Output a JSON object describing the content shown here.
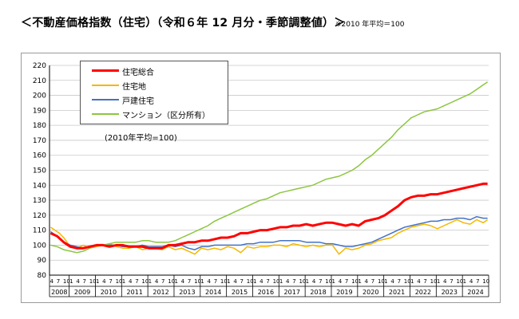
{
  "title": "＜不動産価格指数（住宅）（令和６年 12 月分・季節調整値）＞",
  "title_note": "※2010 年平均＝100",
  "legend_note": "(2010年平均=100)",
  "chart_data": {
    "type": "line",
    "title": "不動産価格指数（住宅）（令和６年12月分・季節調整値）",
    "xlabel": "",
    "ylabel": "",
    "ylim": [
      80,
      220
    ],
    "yticks": [
      80,
      90,
      100,
      110,
      120,
      130,
      140,
      150,
      160,
      170,
      180,
      190,
      200,
      210,
      220
    ],
    "grid": true,
    "legend_position": "top-left",
    "x_start": "2008-04",
    "x_end": "2024-12",
    "month_ticks": [
      "4",
      "7",
      "10",
      "1"
    ],
    "years": [
      "2008",
      "2009",
      "2010",
      "2011",
      "2012",
      "2013",
      "2014",
      "2015",
      "2016",
      "2017",
      "2018",
      "2019",
      "2020",
      "2021",
      "2022",
      "2023",
      "2024"
    ],
    "series": [
      {
        "name": "住宅総合",
        "color": "#ff0000",
        "width": 3,
        "points": [
          [
            0,
            108
          ],
          [
            3,
            106
          ],
          [
            6,
            102
          ],
          [
            9,
            99
          ],
          [
            12,
            98
          ],
          [
            15,
            98
          ],
          [
            18,
            99
          ],
          [
            21,
            100
          ],
          [
            24,
            100
          ],
          [
            27,
            99
          ],
          [
            30,
            100
          ],
          [
            33,
            100
          ],
          [
            36,
            99
          ],
          [
            39,
            99
          ],
          [
            42,
            99
          ],
          [
            45,
            98
          ],
          [
            48,
            98
          ],
          [
            51,
            98
          ],
          [
            54,
            100
          ],
          [
            57,
            100
          ],
          [
            60,
            101
          ],
          [
            63,
            102
          ],
          [
            66,
            102
          ],
          [
            69,
            103
          ],
          [
            72,
            103
          ],
          [
            75,
            104
          ],
          [
            78,
            105
          ],
          [
            81,
            105
          ],
          [
            84,
            106
          ],
          [
            87,
            108
          ],
          [
            90,
            108
          ],
          [
            93,
            109
          ],
          [
            96,
            110
          ],
          [
            99,
            110
          ],
          [
            102,
            111
          ],
          [
            105,
            112
          ],
          [
            108,
            112
          ],
          [
            111,
            113
          ],
          [
            114,
            113
          ],
          [
            117,
            114
          ],
          [
            120,
            113
          ],
          [
            123,
            114
          ],
          [
            126,
            115
          ],
          [
            129,
            115
          ],
          [
            132,
            114
          ],
          [
            135,
            113
          ],
          [
            138,
            114
          ],
          [
            141,
            113
          ],
          [
            144,
            116
          ],
          [
            147,
            117
          ],
          [
            150,
            118
          ],
          [
            153,
            120
          ],
          [
            156,
            123
          ],
          [
            159,
            126
          ],
          [
            162,
            130
          ],
          [
            165,
            132
          ],
          [
            168,
            133
          ],
          [
            171,
            133
          ],
          [
            174,
            134
          ],
          [
            177,
            134
          ],
          [
            180,
            135
          ],
          [
            183,
            136
          ],
          [
            186,
            137
          ],
          [
            189,
            138
          ],
          [
            192,
            139
          ],
          [
            195,
            140
          ],
          [
            198,
            141
          ],
          [
            200,
            141
          ]
        ]
      },
      {
        "name": "住宅地",
        "color": "#f5b800",
        "width": 1.5,
        "points": [
          [
            0,
            112
          ],
          [
            2,
            110
          ],
          [
            4,
            108
          ],
          [
            6,
            105
          ],
          [
            8,
            101
          ],
          [
            10,
            99
          ],
          [
            12,
            98
          ],
          [
            15,
            100
          ],
          [
            18,
            98
          ],
          [
            21,
            99
          ],
          [
            24,
            100
          ],
          [
            27,
            101
          ],
          [
            30,
            99
          ],
          [
            33,
            98
          ],
          [
            36,
            98
          ],
          [
            39,
            99
          ],
          [
            42,
            97
          ],
          [
            45,
            98
          ],
          [
            48,
            98
          ],
          [
            51,
            97
          ],
          [
            54,
            99
          ],
          [
            57,
            97
          ],
          [
            60,
            98
          ],
          [
            63,
            96
          ],
          [
            66,
            94
          ],
          [
            69,
            98
          ],
          [
            72,
            97
          ],
          [
            75,
            98
          ],
          [
            78,
            97
          ],
          [
            81,
            99
          ],
          [
            84,
            98
          ],
          [
            87,
            95
          ],
          [
            90,
            99
          ],
          [
            93,
            98
          ],
          [
            96,
            99
          ],
          [
            99,
            99
          ],
          [
            102,
            100
          ],
          [
            105,
            100
          ],
          [
            108,
            99
          ],
          [
            111,
            101
          ],
          [
            114,
            100
          ],
          [
            117,
            99
          ],
          [
            120,
            100
          ],
          [
            123,
            99
          ],
          [
            126,
            100
          ],
          [
            129,
            100
          ],
          [
            132,
            94
          ],
          [
            135,
            98
          ],
          [
            138,
            97
          ],
          [
            141,
            98
          ],
          [
            144,
            100
          ],
          [
            147,
            101
          ],
          [
            150,
            103
          ],
          [
            153,
            104
          ],
          [
            156,
            105
          ],
          [
            159,
            108
          ],
          [
            162,
            110
          ],
          [
            165,
            112
          ],
          [
            168,
            113
          ],
          [
            171,
            114
          ],
          [
            174,
            113
          ],
          [
            177,
            111
          ],
          [
            180,
            113
          ],
          [
            183,
            115
          ],
          [
            186,
            117
          ],
          [
            189,
            115
          ],
          [
            192,
            114
          ],
          [
            195,
            117
          ],
          [
            198,
            115
          ],
          [
            200,
            117
          ]
        ]
      },
      {
        "name": "戸建住宅",
        "color": "#4472c4",
        "width": 1.5,
        "points": [
          [
            0,
            109
          ],
          [
            3,
            106
          ],
          [
            6,
            102
          ],
          [
            9,
            100
          ],
          [
            12,
            99
          ],
          [
            15,
            98
          ],
          [
            18,
            99
          ],
          [
            21,
            100
          ],
          [
            24,
            100
          ],
          [
            27,
            100
          ],
          [
            30,
            100
          ],
          [
            33,
            99
          ],
          [
            36,
            99
          ],
          [
            39,
            99
          ],
          [
            42,
            100
          ],
          [
            45,
            99
          ],
          [
            48,
            99
          ],
          [
            51,
            99
          ],
          [
            54,
            100
          ],
          [
            57,
            99
          ],
          [
            60,
            100
          ],
          [
            63,
            98
          ],
          [
            66,
            97
          ],
          [
            69,
            99
          ],
          [
            72,
            99
          ],
          [
            75,
            100
          ],
          [
            78,
            100
          ],
          [
            81,
            100
          ],
          [
            84,
            100
          ],
          [
            87,
            100
          ],
          [
            90,
            101
          ],
          [
            93,
            101
          ],
          [
            96,
            102
          ],
          [
            99,
            102
          ],
          [
            102,
            102
          ],
          [
            105,
            103
          ],
          [
            108,
            103
          ],
          [
            111,
            103
          ],
          [
            114,
            103
          ],
          [
            117,
            102
          ],
          [
            120,
            102
          ],
          [
            123,
            102
          ],
          [
            126,
            101
          ],
          [
            129,
            101
          ],
          [
            132,
            100
          ],
          [
            135,
            99
          ],
          [
            138,
            99
          ],
          [
            141,
            100
          ],
          [
            144,
            101
          ],
          [
            147,
            102
          ],
          [
            150,
            104
          ],
          [
            153,
            106
          ],
          [
            156,
            108
          ],
          [
            159,
            110
          ],
          [
            162,
            112
          ],
          [
            165,
            113
          ],
          [
            168,
            114
          ],
          [
            171,
            115
          ],
          [
            174,
            116
          ],
          [
            177,
            116
          ],
          [
            180,
            117
          ],
          [
            183,
            117
          ],
          [
            186,
            118
          ],
          [
            189,
            118
          ],
          [
            192,
            117
          ],
          [
            195,
            119
          ],
          [
            198,
            118
          ],
          [
            200,
            118
          ]
        ]
      },
      {
        "name": "マンション（区分所有）",
        "color": "#8cc63f",
        "width": 1.5,
        "points": [
          [
            0,
            100
          ],
          [
            3,
            99
          ],
          [
            6,
            97
          ],
          [
            9,
            96
          ],
          [
            12,
            95
          ],
          [
            15,
            96
          ],
          [
            18,
            98
          ],
          [
            21,
            100
          ],
          [
            24,
            100
          ],
          [
            27,
            101
          ],
          [
            30,
            102
          ],
          [
            33,
            102
          ],
          [
            36,
            102
          ],
          [
            39,
            102
          ],
          [
            42,
            103
          ],
          [
            45,
            103
          ],
          [
            48,
            102
          ],
          [
            51,
            102
          ],
          [
            54,
            102
          ],
          [
            57,
            103
          ],
          [
            60,
            105
          ],
          [
            63,
            107
          ],
          [
            66,
            109
          ],
          [
            69,
            111
          ],
          [
            72,
            113
          ],
          [
            75,
            116
          ],
          [
            78,
            118
          ],
          [
            81,
            120
          ],
          [
            84,
            122
          ],
          [
            87,
            124
          ],
          [
            90,
            126
          ],
          [
            93,
            128
          ],
          [
            96,
            130
          ],
          [
            99,
            131
          ],
          [
            102,
            133
          ],
          [
            105,
            135
          ],
          [
            108,
            136
          ],
          [
            111,
            137
          ],
          [
            114,
            138
          ],
          [
            117,
            139
          ],
          [
            120,
            140
          ],
          [
            123,
            142
          ],
          [
            126,
            144
          ],
          [
            129,
            145
          ],
          [
            132,
            146
          ],
          [
            135,
            148
          ],
          [
            138,
            150
          ],
          [
            141,
            153
          ],
          [
            144,
            157
          ],
          [
            147,
            160
          ],
          [
            150,
            164
          ],
          [
            153,
            168
          ],
          [
            156,
            172
          ],
          [
            159,
            177
          ],
          [
            162,
            181
          ],
          [
            165,
            185
          ],
          [
            168,
            187
          ],
          [
            171,
            189
          ],
          [
            174,
            190
          ],
          [
            177,
            191
          ],
          [
            180,
            193
          ],
          [
            183,
            195
          ],
          [
            186,
            197
          ],
          [
            189,
            199
          ],
          [
            192,
            201
          ],
          [
            195,
            204
          ],
          [
            198,
            207
          ],
          [
            200,
            209
          ]
        ]
      }
    ]
  }
}
